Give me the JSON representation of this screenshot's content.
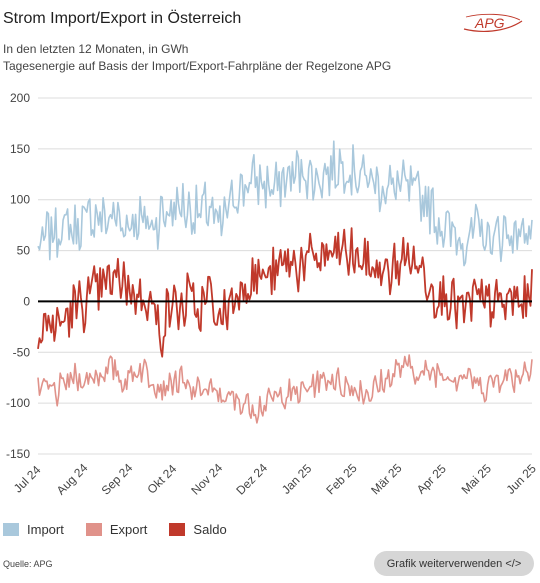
{
  "header": {
    "title": "Strom Import/Export in Österreich",
    "subtitle_1": "In den letzten 12 Monaten, in GWh",
    "subtitle_2": "Tagesenergie auf Basis der Import/Export-Fahrpläne der Regelzone APG",
    "logo_text": "APG"
  },
  "footer": {
    "source": "Quelle: APG",
    "reuse_button": "Grafik weiterverwenden </>"
  },
  "colors": {
    "import": "#a9c8dc",
    "export": "#e0928a",
    "saldo": "#c0392b",
    "zero_line": "#000000",
    "grid": "#dcdcdc",
    "logo": "#c0392b"
  },
  "chart_data": {
    "type": "line",
    "ylim": [
      -150,
      200
    ],
    "yticks": [
      200,
      150,
      100,
      50,
      0,
      -50,
      -100,
      -150
    ],
    "xticks": [
      "Jul 24",
      "Aug 24",
      "Sep 24",
      "Okt 24",
      "Nov 24",
      "Dez 24",
      "Jan 25",
      "Feb 25",
      "Mär 25",
      "Apr 25",
      "Mai 25",
      "Jun 25"
    ],
    "grid": true,
    "legend_position": "bottom-left",
    "series": [
      {
        "name": "Import",
        "weekly_values": [
          50,
          65,
          70,
          75,
          70,
          80,
          85,
          80,
          85,
          75,
          80,
          80,
          75,
          85,
          90,
          95,
          90,
          85,
          95,
          70,
          90,
          110,
          115,
          120,
          115,
          110,
          120,
          125,
          130,
          120,
          125,
          130,
          135,
          130,
          125,
          120,
          115,
          110,
          115,
          110,
          105,
          100,
          80,
          70,
          65,
          60,
          70,
          65,
          60,
          70,
          65,
          70,
          75
        ]
      },
      {
        "name": "Export",
        "weekly_values": [
          -90,
          -85,
          -90,
          -80,
          -75,
          -78,
          -72,
          -70,
          -65,
          -80,
          -70,
          -65,
          -75,
          -85,
          -80,
          -78,
          -90,
          -85,
          -88,
          -92,
          -95,
          -98,
          -100,
          -105,
          -100,
          -95,
          -90,
          -92,
          -88,
          -80,
          -78,
          -75,
          -82,
          -85,
          -88,
          -90,
          -82,
          -75,
          -65,
          -65,
          -70,
          -72,
          -68,
          -70,
          -75,
          -72,
          -80,
          -85,
          -78,
          -72,
          -75,
          -70,
          -60
        ]
      },
      {
        "name": "Saldo",
        "weekly_values": [
          -40,
          -20,
          -25,
          -15,
          -5,
          0,
          10,
          15,
          20,
          25,
          5,
          10,
          -5,
          -30,
          0,
          -10,
          5,
          -15,
          10,
          -20,
          -5,
          10,
          20,
          25,
          25,
          25,
          40,
          35,
          40,
          40,
          45,
          45,
          50,
          45,
          40,
          35,
          30,
          25,
          40,
          45,
          35,
          25,
          5,
          10,
          -5,
          -10,
          5,
          -5,
          0,
          -5,
          5,
          -5,
          10
        ]
      }
    ]
  }
}
